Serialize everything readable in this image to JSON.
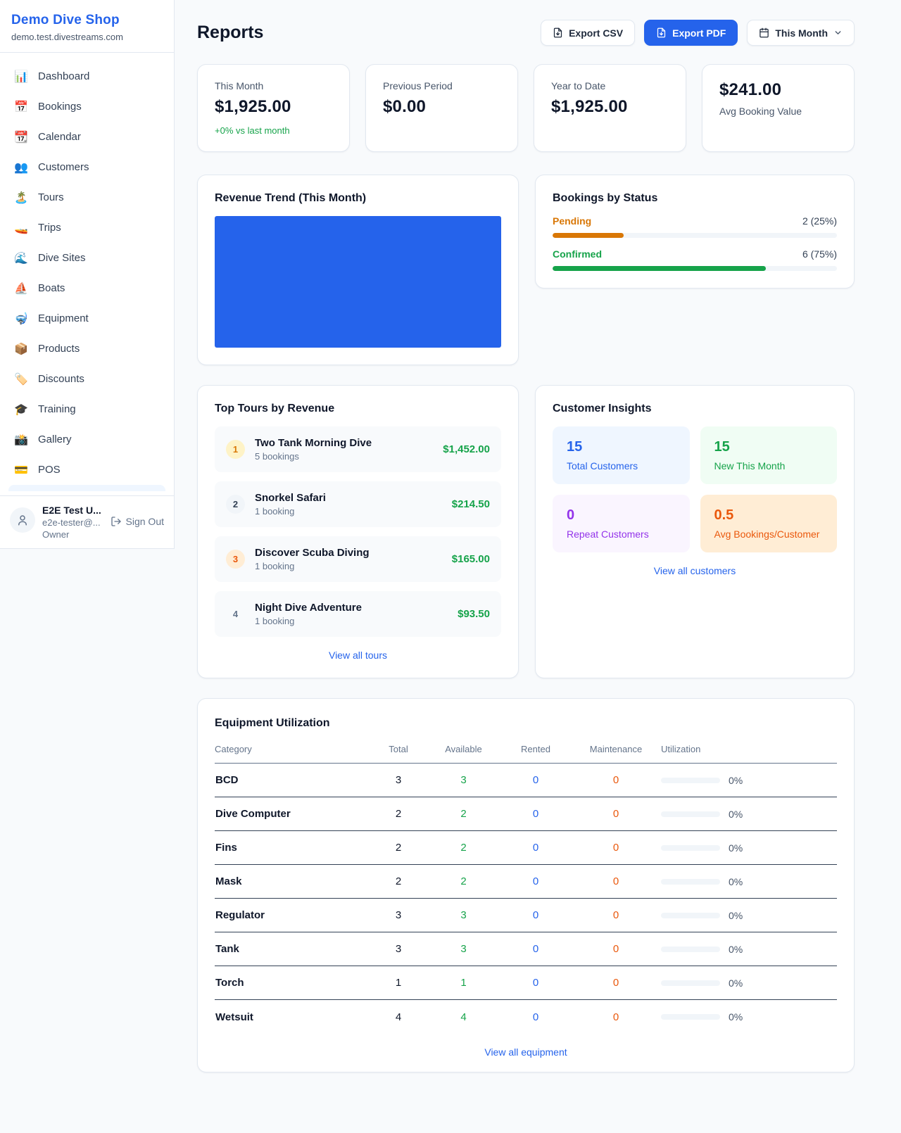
{
  "colors": {
    "accent_blue": "#2563eb",
    "green": "#16a34a",
    "amber": "#d97706",
    "orange": "#ea580c",
    "purple": "#9333ea"
  },
  "sidebar": {
    "shop_name": "Demo Dive Shop",
    "shop_domain": "demo.test.divestreams.com",
    "items": [
      {
        "icon": "📊",
        "label": "Dashboard"
      },
      {
        "icon": "📅",
        "label": "Bookings"
      },
      {
        "icon": "📆",
        "label": "Calendar"
      },
      {
        "icon": "👥",
        "label": "Customers"
      },
      {
        "icon": "🏝️",
        "label": "Tours"
      },
      {
        "icon": "🚤",
        "label": "Trips"
      },
      {
        "icon": "🌊",
        "label": "Dive Sites"
      },
      {
        "icon": "⛵",
        "label": "Boats"
      },
      {
        "icon": "🤿",
        "label": "Equipment"
      },
      {
        "icon": "📦",
        "label": "Products"
      },
      {
        "icon": "🏷️",
        "label": "Discounts"
      },
      {
        "icon": "🎓",
        "label": "Training"
      },
      {
        "icon": "📸",
        "label": "Gallery"
      },
      {
        "icon": "💳",
        "label": "POS"
      }
    ],
    "user": {
      "name": "E2E Test U...",
      "email": "e2e-tester@...",
      "role": "Owner",
      "sign_out_label": "Sign Out"
    }
  },
  "header": {
    "title": "Reports",
    "export_csv_label": "Export CSV",
    "export_pdf_label": "Export PDF",
    "period_label": "This Month"
  },
  "stats": [
    {
      "label": "This Month",
      "value": "$1,925.00",
      "delta": "+0% vs last month"
    },
    {
      "label": "Previous Period",
      "value": "$0.00"
    },
    {
      "label": "Year to Date",
      "value": "$1,925.00"
    },
    {
      "label": "Avg Booking Value",
      "value": "$241.00"
    }
  ],
  "revenue_trend": {
    "title": "Revenue Trend (This Month)",
    "chart": {
      "type": "area",
      "fill_color": "#2563eb",
      "note": "chart area renders as one solid filled block; no axes, ticks or labels visible"
    }
  },
  "bookings_by_status": {
    "title": "Bookings by Status",
    "rows": [
      {
        "label": "Pending",
        "value": "2 (25%)",
        "pct": 25
      },
      {
        "label": "Confirmed",
        "value": "6 (75%)",
        "pct": 75
      }
    ]
  },
  "top_tours": {
    "title": "Top Tours by Revenue",
    "items": [
      {
        "rank": "1",
        "name": "Two Tank Morning Dive",
        "bookings": "5 bookings",
        "revenue": "$1,452.00"
      },
      {
        "rank": "2",
        "name": "Snorkel Safari",
        "bookings": "1 booking",
        "revenue": "$214.50"
      },
      {
        "rank": "3",
        "name": "Discover Scuba Diving",
        "bookings": "1 booking",
        "revenue": "$165.00"
      },
      {
        "rank": "4",
        "name": "Night Dive Adventure",
        "bookings": "1 booking",
        "revenue": "$93.50"
      }
    ],
    "view_all": "View all tours"
  },
  "customer_insights": {
    "title": "Customer Insights",
    "tiles": [
      {
        "value": "15",
        "label": "Total Customers"
      },
      {
        "value": "15",
        "label": "New This Month"
      },
      {
        "value": "0",
        "label": "Repeat Customers"
      },
      {
        "value": "0.5",
        "label": "Avg Bookings/Customer"
      }
    ],
    "view_all": "View all customers"
  },
  "equipment": {
    "title": "Equipment Utilization",
    "columns": [
      "Category",
      "Total",
      "Available",
      "Rented",
      "Maintenance",
      "Utilization"
    ],
    "rows": [
      {
        "category": "BCD",
        "total": "3",
        "available": "3",
        "rented": "0",
        "maintenance": "0",
        "utilization": "0%"
      },
      {
        "category": "Dive Computer",
        "total": "2",
        "available": "2",
        "rented": "0",
        "maintenance": "0",
        "utilization": "0%"
      },
      {
        "category": "Fins",
        "total": "2",
        "available": "2",
        "rented": "0",
        "maintenance": "0",
        "utilization": "0%"
      },
      {
        "category": "Mask",
        "total": "2",
        "available": "2",
        "rented": "0",
        "maintenance": "0",
        "utilization": "0%"
      },
      {
        "category": "Regulator",
        "total": "3",
        "available": "3",
        "rented": "0",
        "maintenance": "0",
        "utilization": "0%"
      },
      {
        "category": "Tank",
        "total": "3",
        "available": "3",
        "rented": "0",
        "maintenance": "0",
        "utilization": "0%"
      },
      {
        "category": "Torch",
        "total": "1",
        "available": "1",
        "rented": "0",
        "maintenance": "0",
        "utilization": "0%"
      },
      {
        "category": "Wetsuit",
        "total": "4",
        "available": "4",
        "rented": "0",
        "maintenance": "0",
        "utilization": "0%"
      }
    ],
    "view_all": "View all equipment"
  }
}
